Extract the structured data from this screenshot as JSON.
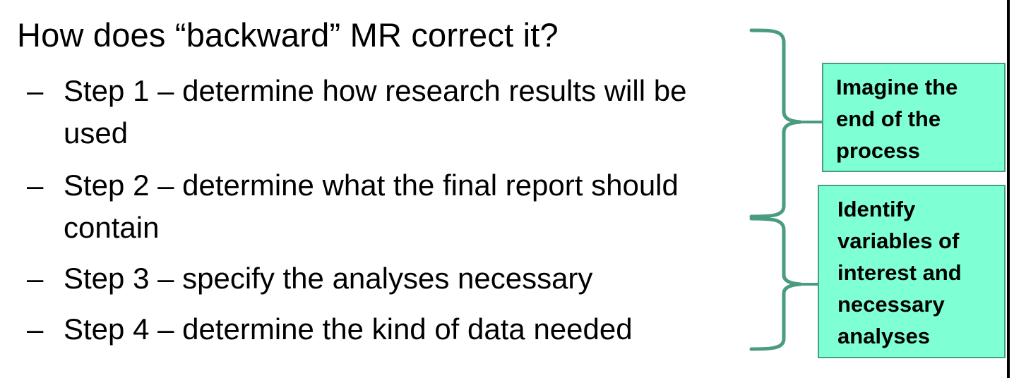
{
  "slide": {
    "title": "How does “backward” MR correct it?",
    "bullet_marker": "–",
    "bullets": [
      {
        "line1": "Step 1 – determine how research results will be",
        "line2": "used"
      },
      {
        "line1": "Step 2 – determine what the final report should",
        "line2": "contain"
      },
      {
        "line1": "Step 3 – specify the analyses necessary"
      },
      {
        "line1": "Step 4 – determine the kind of data needed"
      }
    ],
    "callouts": [
      {
        "lines": [
          "Imagine the",
          "end of the",
          "process"
        ]
      },
      {
        "lines": [
          "Identify",
          "variables of",
          "interest and",
          "necessary",
          "analyses"
        ]
      }
    ]
  },
  "colors": {
    "callout_fill": "#7fffd4",
    "callout_border": "#4a9c80",
    "brace_stroke": "#4a9c80"
  }
}
